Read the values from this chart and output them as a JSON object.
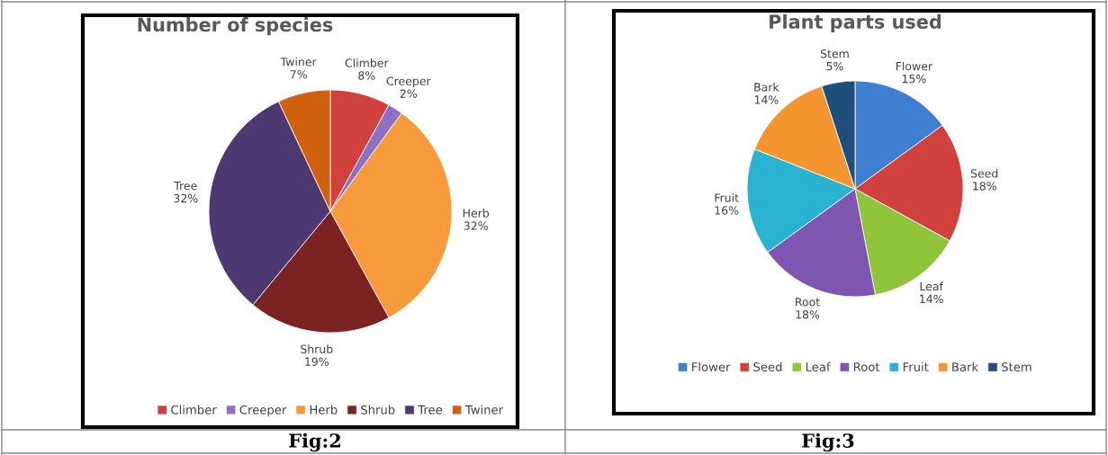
{
  "chart_data": [
    {
      "type": "pie",
      "title": "Number of species",
      "categories": [
        "Climber",
        "Creeper",
        "Herb",
        "Shrub",
        "Tree",
        "Twiner"
      ],
      "values": [
        8,
        2,
        32,
        19,
        32,
        7
      ],
      "value_labels": [
        "8%",
        "2%",
        "32%",
        "19%",
        "32%",
        "7%"
      ],
      "colors": [
        "#d0403c",
        "#8e70c4",
        "#f79a3c",
        "#7b2222",
        "#4d3872",
        "#d0620f"
      ],
      "legend": "bottom",
      "annotations": [
        "Fig:2"
      ]
    },
    {
      "type": "pie",
      "title": "Plant parts used",
      "categories": [
        "Flower",
        "Seed",
        "Leaf",
        "Root",
        "Fruit",
        "Bark",
        "Stem"
      ],
      "values": [
        15,
        18,
        14,
        18,
        16,
        14,
        5
      ],
      "value_labels": [
        "15%",
        "18%",
        "14%",
        "18%",
        "16%",
        "14%",
        "5%"
      ],
      "colors": [
        "#3f7fd1",
        "#d0403c",
        "#8fc43b",
        "#7e55b0",
        "#2ab3d0",
        "#f4962f",
        "#1f4e7a"
      ],
      "legend": "bottom",
      "annotations": [
        "Fig:3"
      ]
    }
  ]
}
